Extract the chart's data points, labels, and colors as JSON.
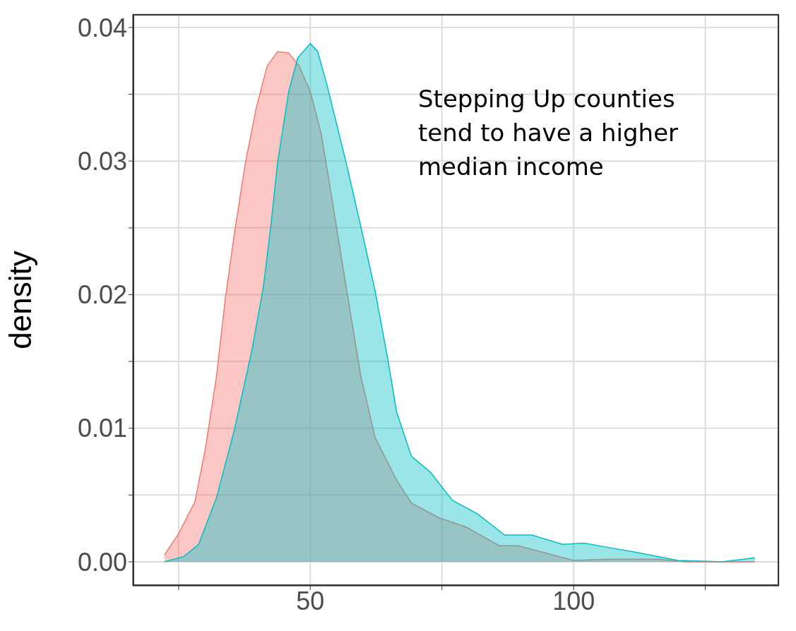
{
  "chart_data": {
    "type": "area",
    "ylabel": "density",
    "annotations": [
      "Stepping Up counties tend to have a higher median income"
    ],
    "series": [
      {
        "color": "#f8766d",
        "x": [
          22.3,
          25.0,
          28.1,
          30.1,
          32.2,
          33.9,
          35.6,
          37.7,
          39.7,
          41.8,
          43.8,
          45.9,
          47.9,
          50.0,
          52.1,
          54.1,
          56.8,
          59.6,
          62.3,
          66.4,
          69.2,
          74.4,
          79.6,
          85.9,
          89.5,
          100,
          106.7,
          116.1,
          121.3,
          134.4
        ],
        "values": [
          0.0005,
          0.0021,
          0.0045,
          0.0085,
          0.0139,
          0.0198,
          0.0246,
          0.0299,
          0.0339,
          0.0371,
          0.0382,
          0.0381,
          0.0371,
          0.0352,
          0.032,
          0.0272,
          0.0206,
          0.0139,
          0.0093,
          0.0061,
          0.0044,
          0.0033,
          0.0026,
          0.0012,
          0.0012,
          0.0001,
          0.0002,
          0.0002,
          0,
          0
        ]
      },
      {
        "color": "#00bfc4",
        "x": [
          22.3,
          26.0,
          28.8,
          32.2,
          35.6,
          39.0,
          41.1,
          42.5,
          43.8,
          45.9,
          47.6,
          50.0,
          51.4,
          53.1,
          54.8,
          56.8,
          59.6,
          62.3,
          64.7,
          66.4,
          69.2,
          72.8,
          77.0,
          81.7,
          86.9,
          92.1,
          97.9,
          102.0,
          106.2,
          112.0,
          119.8,
          128.1,
          134.4
        ],
        "values": [
          0,
          0.0004,
          0.0013,
          0.0048,
          0.0099,
          0.016,
          0.0206,
          0.0251,
          0.0299,
          0.0352,
          0.0377,
          0.0388,
          0.0382,
          0.0358,
          0.0331,
          0.0299,
          0.0251,
          0.0203,
          0.0152,
          0.0112,
          0.0079,
          0.0067,
          0.0046,
          0.0036,
          0.002,
          0.002,
          0.0013,
          0.0014,
          0.0011,
          0.0007,
          0.0001,
          0,
          0.0003
        ]
      }
    ],
    "xlim": [
      16.3,
      139
    ],
    "xticks": [
      {
        "value": 25,
        "label": null
      },
      50,
      {
        "value": 75,
        "label": null
      },
      100,
      {
        "value": 125,
        "label": null
      }
    ],
    "ylim": [
      -0.0018,
      0.041
    ],
    "yticks": [
      {
        "value": 0,
        "label": "0.00"
      },
      {
        "value": 0.005,
        "label": null
      },
      {
        "value": 0.01,
        "label": "0.01"
      },
      {
        "value": 0.015,
        "label": null
      },
      {
        "value": 0.02,
        "label": "0.02"
      },
      {
        "value": 0.025,
        "label": null
      },
      {
        "value": 0.03,
        "label": "0.03"
      },
      {
        "value": 0.035,
        "label": null
      },
      {
        "value": 0.04,
        "label": "0.04"
      }
    ],
    "grid": true
  }
}
